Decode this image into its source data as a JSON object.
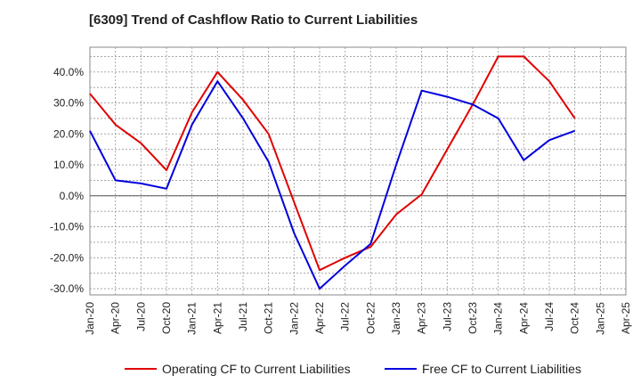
{
  "chart_data": {
    "type": "line",
    "title": "[6309]  Trend of Cashflow Ratio to Current Liabilities",
    "xlabel": "",
    "ylabel": "",
    "categories": [
      "Jan-20",
      "Apr-20",
      "Jul-20",
      "Oct-20",
      "Jan-21",
      "Apr-21",
      "Jul-21",
      "Oct-21",
      "Jan-22",
      "Apr-22",
      "Jul-22",
      "Oct-22",
      "Jan-23",
      "Apr-23",
      "Jul-23",
      "Oct-23",
      "Jan-24",
      "Apr-24",
      "Jul-24",
      "Oct-24",
      "Jan-25",
      "Apr-25"
    ],
    "ylim": [
      -32,
      48
    ],
    "yticks": [
      -30,
      -20,
      -10,
      0,
      10,
      20,
      30,
      40
    ],
    "ytick_labels": [
      "-30.0%",
      "-20.0%",
      "-10.0%",
      "0.0%",
      "10.0%",
      "20.0%",
      "30.0%",
      "40.0%"
    ],
    "grid": true,
    "legend_position": "bottom",
    "series": [
      {
        "name": "Operating CF to Current Liabilities",
        "color": "#e00000",
        "values": [
          33.0,
          23.0,
          17.0,
          8.3,
          27.0,
          40.0,
          31.0,
          20.0,
          -2.0,
          -24.0,
          -20.0,
          -16.5,
          -6.0,
          0.5,
          15.0,
          29.5,
          45.0,
          45.0,
          37.0,
          25.0,
          null,
          null
        ]
      },
      {
        "name": "Free CF to Current Liabilities",
        "color": "#0000dd",
        "values": [
          21.0,
          5.0,
          4.0,
          2.3,
          23.0,
          37.0,
          25.0,
          11.0,
          -12.0,
          -30.0,
          -22.5,
          -15.5,
          10.0,
          34.0,
          32.0,
          29.5,
          25.0,
          11.5,
          18.0,
          21.0,
          null,
          null
        ]
      }
    ]
  }
}
